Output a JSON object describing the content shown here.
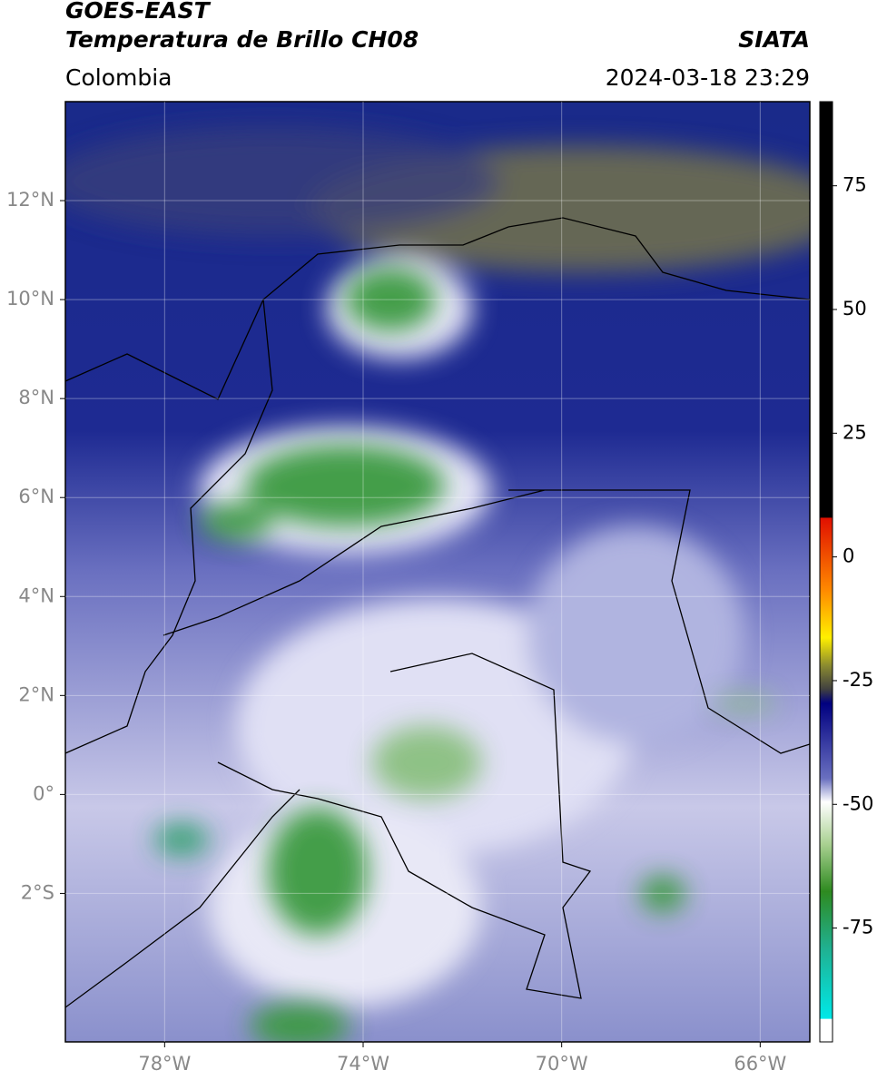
{
  "header": {
    "title": "GOES-EAST",
    "subtitle": "Temperatura de Brillo CH08",
    "source": "SIATA",
    "region": "Colombia",
    "datetime": "2024-03-18 23:29"
  },
  "map": {
    "xlim": [
      -80,
      -65
    ],
    "ylim": [
      -5,
      14
    ],
    "xticks": [
      {
        "value": -78,
        "label": "78°W"
      },
      {
        "value": -74,
        "label": "74°W"
      },
      {
        "value": -70,
        "label": "70°W"
      },
      {
        "value": -66,
        "label": "66°W"
      }
    ],
    "yticks": [
      {
        "value": 12,
        "label": "12°N"
      },
      {
        "value": 10,
        "label": "10°N"
      },
      {
        "value": 8,
        "label": "8°N"
      },
      {
        "value": 6,
        "label": "6°N"
      },
      {
        "value": 4,
        "label": "4°N"
      },
      {
        "value": 2,
        "label": "2°N"
      },
      {
        "value": 0,
        "label": "0°"
      },
      {
        "value": -2,
        "label": "2°S"
      }
    ],
    "grid": true
  },
  "colorbar": {
    "lim": [
      -98,
      92
    ],
    "ticks": [
      75,
      50,
      25,
      0,
      -25,
      -50,
      -75
    ]
  }
}
